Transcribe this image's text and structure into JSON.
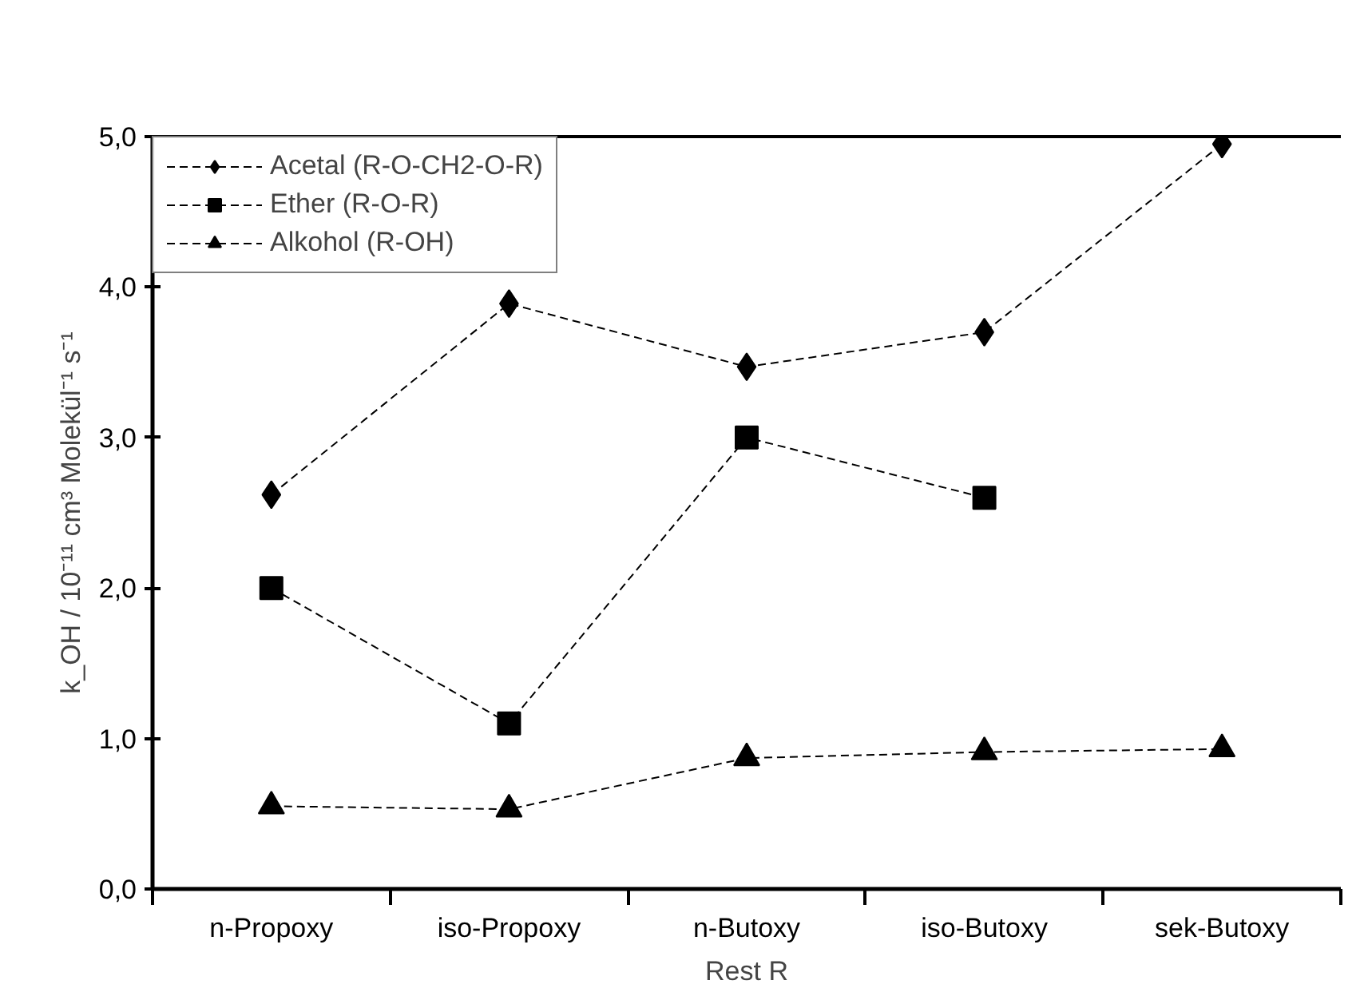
{
  "chart_data": {
    "type": "line",
    "xlabel": "Rest R",
    "ylabel": "k_OH / 10⁻¹¹ cm³ Molekül⁻¹ s⁻¹",
    "categories": [
      "n-Propoxy",
      "iso-Propoxy",
      "n-Butoxy",
      "iso-Butoxy",
      "sek-Butoxy"
    ],
    "series": [
      {
        "name": "Acetal (R-O-CH2-O-R)",
        "color": "#000000",
        "marker": "diamond",
        "values": [
          2.62,
          3.89,
          3.47,
          3.7,
          4.95
        ]
      },
      {
        "name": "Ether (R-O-R)",
        "color": "#000000",
        "marker": "square",
        "values": [
          2.0,
          1.1,
          3.0,
          2.6,
          null
        ]
      },
      {
        "name": "Alkohol (R-OH)",
        "color": "#000000",
        "marker": "triangle",
        "values": [
          0.55,
          0.53,
          0.87,
          0.91,
          0.93
        ]
      }
    ],
    "ylim": [
      0,
      5
    ],
    "yticks": [
      {
        "value": 0,
        "label": "0,0"
      },
      {
        "value": 1,
        "label": "1,0"
      },
      {
        "value": 2,
        "label": "2,0"
      },
      {
        "value": 3,
        "label": "3,0"
      },
      {
        "value": 4,
        "label": "4,0"
      },
      {
        "value": 5,
        "label": "5,0"
      }
    ],
    "line_style": "dashed",
    "grid": false,
    "legend": "top left"
  }
}
